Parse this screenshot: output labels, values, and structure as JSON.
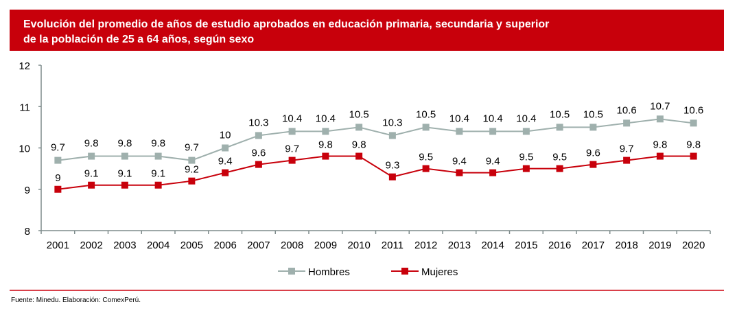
{
  "header": {
    "title_line1": "Evolución del promedio de años de estudio aprobados en educación primaria, secundaria y superior",
    "title_line2": "de la población de 25 a 64 años, según sexo"
  },
  "footer": {
    "source": "Fuente: Minedu. Elaboración: ComexPerú."
  },
  "chart_data": {
    "type": "line",
    "title": "Evolución del promedio de años de estudio aprobados en educación primaria, secundaria y superior de la población de 25 a 64 años, según sexo",
    "xlabel": "",
    "ylabel": "",
    "categories": [
      "2001",
      "2002",
      "2003",
      "2004",
      "2005",
      "2006",
      "2007",
      "2008",
      "2009",
      "2010",
      "2011",
      "2012",
      "2013",
      "2014",
      "2015",
      "2016",
      "2017",
      "2018",
      "2019",
      "2020"
    ],
    "ylim": [
      8,
      12
    ],
    "yticks": [
      "8",
      "9",
      "10",
      "11",
      "12"
    ],
    "grid": false,
    "legend": "bottom",
    "series": [
      {
        "name": "Hombres",
        "color": "#9fb0ad",
        "marker": "square",
        "values": [
          9.7,
          9.8,
          9.8,
          9.8,
          9.7,
          10,
          10.3,
          10.4,
          10.4,
          10.5,
          10.3,
          10.5,
          10.4,
          10.4,
          10.4,
          10.5,
          10.5,
          10.6,
          10.7,
          10.6
        ]
      },
      {
        "name": "Mujeres",
        "color": "#c8000b",
        "marker": "square",
        "values": [
          9,
          9.1,
          9.1,
          9.1,
          9.2,
          9.4,
          9.6,
          9.7,
          9.8,
          9.8,
          9.3,
          9.5,
          9.4,
          9.4,
          9.5,
          9.5,
          9.6,
          9.7,
          9.8,
          9.8
        ]
      }
    ]
  }
}
